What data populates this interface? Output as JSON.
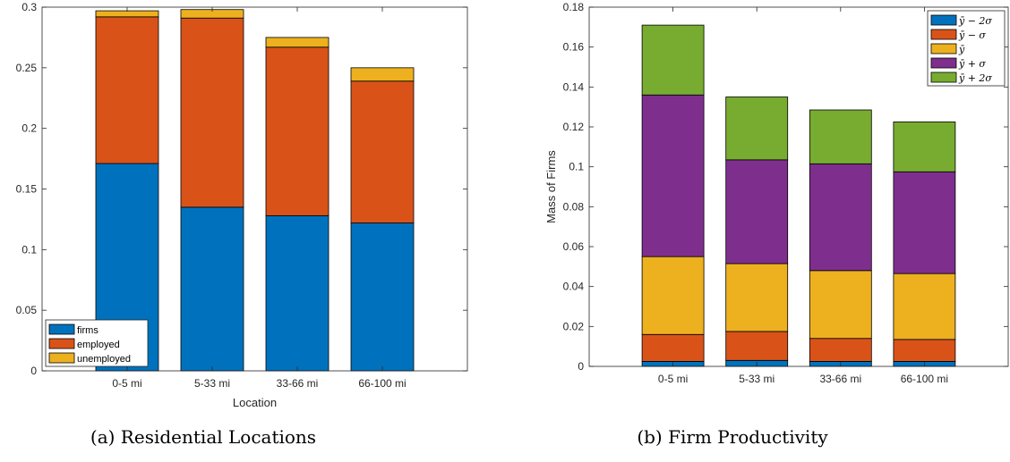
{
  "chart_data": [
    {
      "type": "bar",
      "stacked": true,
      "caption": "(a) Residential Locations",
      "title": "",
      "xlabel": "Location",
      "ylabel": "",
      "categories": [
        "0-5 mi",
        "5-33 mi",
        "33-66 mi",
        "66-100 mi"
      ],
      "ylim": [
        0,
        0.3
      ],
      "yticks": [
        "0",
        "0.05",
        "0.1",
        "0.15",
        "0.2",
        "0.25",
        "0.3"
      ],
      "ytick_values": [
        0,
        0.05,
        0.1,
        0.15,
        0.2,
        0.25,
        0.3
      ],
      "grid": false,
      "legend_position": "bottom-left",
      "series": [
        {
          "name": "firms",
          "color": "#0072BD",
          "values": [
            0.171,
            0.135,
            0.128,
            0.122
          ]
        },
        {
          "name": "employed",
          "color": "#D95319",
          "values": [
            0.121,
            0.156,
            0.139,
            0.117
          ]
        },
        {
          "name": "unemployed",
          "color": "#EDB120",
          "values": [
            0.005,
            0.007,
            0.008,
            0.011
          ]
        }
      ]
    },
    {
      "type": "bar",
      "stacked": true,
      "caption": "(b) Firm Productivity",
      "title": "",
      "xlabel": "",
      "ylabel": "Mass of Firms",
      "categories": [
        "0-5 mi",
        "5-33 mi",
        "33-66 mi",
        "66-100 mi"
      ],
      "ylim": [
        0,
        0.18
      ],
      "yticks": [
        "0",
        "0.02",
        "0.04",
        "0.06",
        "0.08",
        "0.1",
        "0.12",
        "0.14",
        "0.16",
        "0.18"
      ],
      "ytick_values": [
        0,
        0.02,
        0.04,
        0.06,
        0.08,
        0.1,
        0.12,
        0.14,
        0.16,
        0.18
      ],
      "grid": false,
      "legend_position": "top-right",
      "series": [
        {
          "name": "ȳ − 2σ",
          "color": "#0072BD",
          "values": [
            0.0025,
            0.003,
            0.0025,
            0.0025
          ]
        },
        {
          "name": "ȳ − σ",
          "color": "#D95319",
          "values": [
            0.0135,
            0.0145,
            0.0115,
            0.011
          ]
        },
        {
          "name": "ȳ",
          "color": "#EDB120",
          "values": [
            0.039,
            0.034,
            0.034,
            0.033
          ]
        },
        {
          "name": "ȳ + σ",
          "color": "#7E2F8E",
          "values": [
            0.081,
            0.052,
            0.0535,
            0.051
          ]
        },
        {
          "name": "ȳ + 2σ",
          "color": "#77AC30",
          "values": [
            0.035,
            0.0315,
            0.027,
            0.025
          ]
        }
      ]
    }
  ]
}
